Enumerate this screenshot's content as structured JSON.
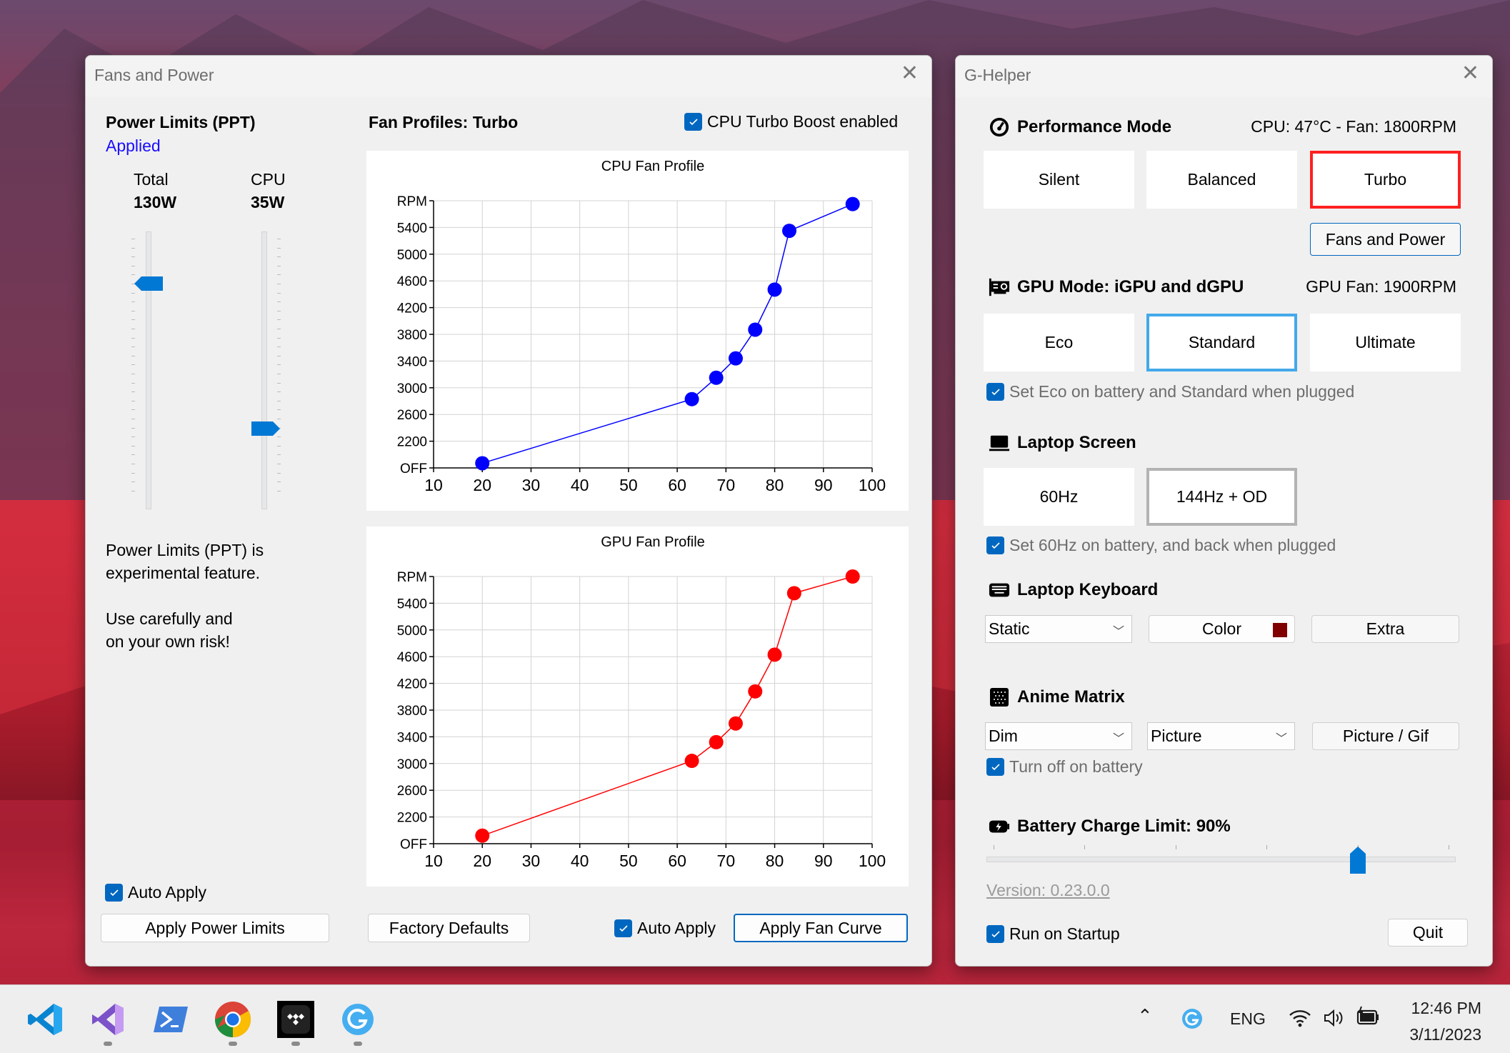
{
  "fans_window": {
    "title": "Fans and Power",
    "power_limits": {
      "title": "Power Limits (PPT)",
      "status": "Applied",
      "total": {
        "label": "Total",
        "value": "130W",
        "slider_fraction": 0.83
      },
      "cpu": {
        "label": "CPU",
        "value": "35W",
        "slider_fraction": 0.28
      },
      "warning_line1": "Power Limits (PPT) is",
      "warning_line2": "experimental feature.",
      "warning_line3": "Use carefully and",
      "warning_line4": "on your own risk!",
      "auto_apply": {
        "label": "Auto Apply",
        "checked": true
      },
      "apply_button": "Apply Power Limits"
    },
    "fan_profiles": {
      "title": "Fan Profiles: Turbo",
      "turbo_boost": {
        "label": "CPU Turbo Boost enabled",
        "checked": true
      },
      "factory_defaults": "Factory Defaults",
      "auto_apply": {
        "label": "Auto Apply",
        "checked": true
      },
      "apply_button": "Apply Fan Curve"
    }
  },
  "chart_data": [
    {
      "type": "line",
      "title": "CPU Fan Profile",
      "color": "#0000ff",
      "x": [
        20,
        63,
        68,
        72,
        76,
        80,
        83,
        96
      ],
      "y": [
        1870,
        2830,
        3150,
        3440,
        3870,
        4470,
        5350,
        5750
      ],
      "xlim": [
        10,
        100
      ],
      "xticks": [
        "10",
        "20",
        "30",
        "40",
        "50",
        "60",
        "70",
        "80",
        "90",
        "100"
      ],
      "ylim": [
        1800,
        5800
      ],
      "yticks": [
        "OFF",
        "2200",
        "2600",
        "3000",
        "3400",
        "3800",
        "4200",
        "4600",
        "5000",
        "5400",
        "RPM"
      ],
      "grid": true
    },
    {
      "type": "line",
      "title": "GPU Fan Profile",
      "color": "#ff0000",
      "x": [
        20,
        63,
        68,
        72,
        76,
        80,
        84,
        96
      ],
      "y": [
        1920,
        3040,
        3320,
        3600,
        4080,
        4630,
        5550,
        5800
      ],
      "xlim": [
        10,
        100
      ],
      "xticks": [
        "10",
        "20",
        "30",
        "40",
        "50",
        "60",
        "70",
        "80",
        "90",
        "100"
      ],
      "ylim": [
        1800,
        5800
      ],
      "yticks": [
        "OFF",
        "2200",
        "2600",
        "3000",
        "3400",
        "3800",
        "4200",
        "4600",
        "5000",
        "5400",
        "RPM"
      ],
      "grid": true
    }
  ],
  "ghelper": {
    "title": "G-Helper",
    "performance": {
      "title": "Performance Mode",
      "status": "CPU: 47°C -  Fan: 1800RPM",
      "modes": [
        "Silent",
        "Balanced",
        "Turbo"
      ],
      "selected": "Turbo",
      "selected_color": "#ff2020",
      "fans_button": "Fans and Power"
    },
    "gpu": {
      "title": "GPU Mode: iGPU and dGPU",
      "status": "GPU Fan: 1900RPM",
      "modes": [
        "Eco",
        "Standard",
        "Ultimate"
      ],
      "selected": "Standard",
      "selected_color": "#43a9ea",
      "auto": {
        "label": "Set Eco on battery and Standard when plugged",
        "checked": true
      }
    },
    "screen": {
      "title": "Laptop Screen",
      "modes": [
        "60Hz",
        "144Hz + OD"
      ],
      "selected": "144Hz + OD",
      "auto": {
        "label": "Set 60Hz on battery, and back when plugged",
        "checked": true
      }
    },
    "keyboard": {
      "title": "Laptop Keyboard",
      "mode": "Static",
      "color_label": "Color",
      "color_value": "#800000",
      "extra": "Extra"
    },
    "anime": {
      "title": "Anime Matrix",
      "brightness": "Dim",
      "mode": "Picture",
      "picture_button": "Picture / Gif",
      "battery_off": {
        "label": "Turn off on battery",
        "checked": true
      }
    },
    "battery": {
      "title": "Battery Charge Limit: 90%",
      "value": 90,
      "range": [
        50,
        100
      ]
    },
    "version": "Version: 0.23.0.0",
    "startup": {
      "label": "Run on Startup",
      "checked": true
    },
    "quit": "Quit"
  },
  "taskbar": {
    "apps": [
      "vscode-icon",
      "visual-studio-icon",
      "powershell-icon",
      "chrome-icon",
      "tidal-icon",
      "g-helper-icon"
    ],
    "language": "ENG",
    "time": "12:46 PM",
    "date": "3/11/2023"
  }
}
